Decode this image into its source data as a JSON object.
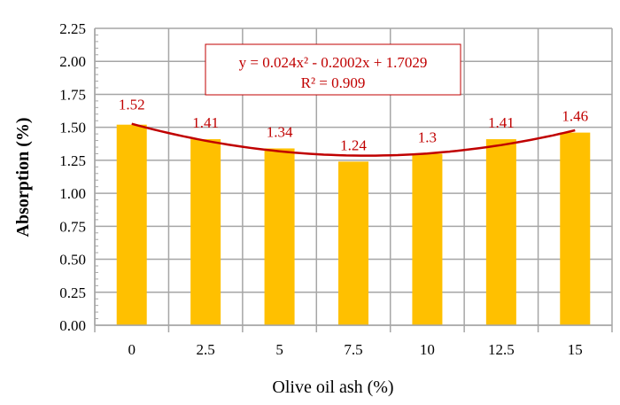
{
  "chart_data": {
    "type": "bar",
    "title": "",
    "xlabel": "Olive oil ash  (%)",
    "ylabel": "Absorption (%)",
    "categories": [
      "0",
      "2.5",
      "5",
      "7.5",
      "10",
      "12.5",
      "15"
    ],
    "values": [
      1.52,
      1.41,
      1.34,
      1.24,
      1.3,
      1.41,
      1.46
    ],
    "data_labels": [
      "1.52",
      "1.41",
      "1.34",
      "1.24",
      "1.3",
      "1.41",
      "1.46"
    ],
    "ylim": [
      0,
      2.25
    ],
    "yticks": [
      "0.00",
      "0.25",
      "0.50",
      "0.75",
      "1.00",
      "1.25",
      "1.50",
      "1.75",
      "2.00",
      "2.25"
    ],
    "grid": true,
    "trendline": {
      "type": "polynomial",
      "coefficients": [
        0.024,
        -0.2002,
        1.7029
      ],
      "equation": "y = 0.024x²  - 0.2002x  + 1.7029",
      "r2": "R² = 0.909"
    },
    "colors": {
      "bar": "#FFC000",
      "trendline": "#C00000",
      "labels": "#C00000",
      "grid": "#A6A6A6"
    }
  }
}
